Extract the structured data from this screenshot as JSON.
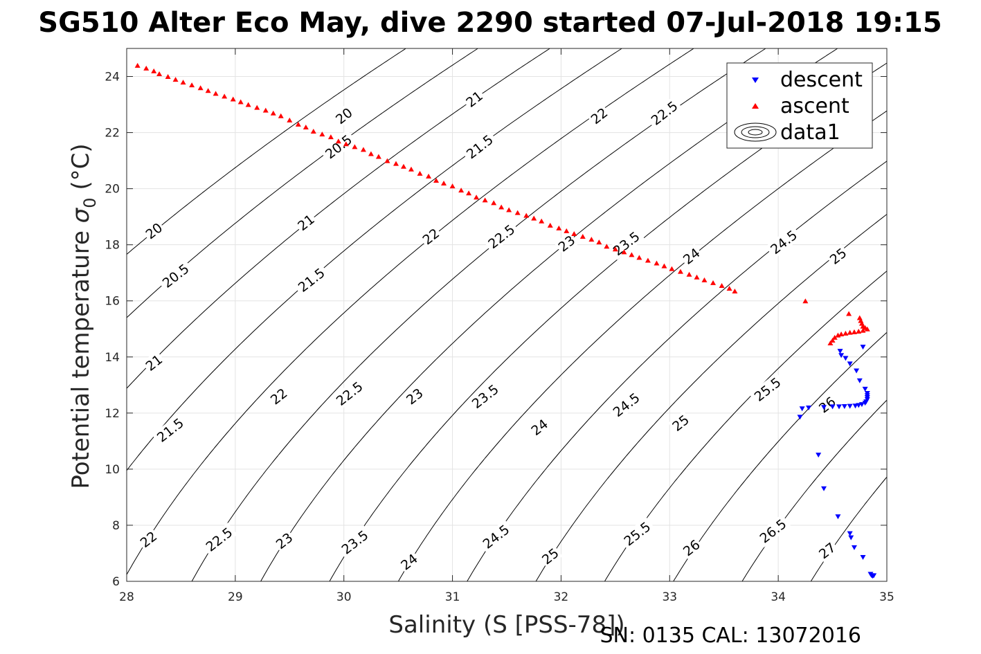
{
  "chart_data": {
    "type": "scatter",
    "title": "SG510 Alter Eco May, dive 2290 started 07-Jul-2018 19:15",
    "xlabel": "Salinity (S [PSS-78])",
    "ylabel_prefix": "Potential temperature ",
    "ylabel_symbol": "σ",
    "ylabel_subscript": "0",
    "ylabel_suffix": " (°C)",
    "xlim": [
      28,
      35
    ],
    "ylim": [
      6,
      25
    ],
    "xticks": [
      28,
      29,
      30,
      31,
      32,
      33,
      34,
      35
    ],
    "yticks": [
      6,
      8,
      10,
      12,
      14,
      16,
      18,
      20,
      22,
      24
    ],
    "grid": true,
    "legend_position": "top-right",
    "legend": [
      {
        "label": "descent",
        "marker": "triangle-down",
        "color": "#0000ff"
      },
      {
        "label": "ascent",
        "marker": "triangle-up",
        "color": "#ff0000"
      },
      {
        "label": "data1",
        "marker": "contour",
        "color": "#000000"
      }
    ],
    "footer": "SN: 0135  CAL: 13072016",
    "contours": {
      "levels": [
        20,
        20.5,
        21,
        21.5,
        22,
        22.5,
        23,
        23.5,
        24,
        24.5,
        25,
        25.5,
        26,
        26.5,
        27
      ],
      "line_color": "#000000",
      "labels": [
        {
          "text": "20",
          "x": 30.0,
          "y": 22.6
        },
        {
          "text": "21",
          "x": 31.2,
          "y": 23.2
        },
        {
          "text": "22",
          "x": 32.35,
          "y": 22.6
        },
        {
          "text": "22.5",
          "x": 32.95,
          "y": 22.7
        },
        {
          "text": "20.5",
          "x": 29.95,
          "y": 21.5
        },
        {
          "text": "21.5",
          "x": 31.25,
          "y": 21.5
        },
        {
          "text": "20",
          "x": 28.25,
          "y": 18.5
        },
        {
          "text": "21",
          "x": 29.65,
          "y": 18.8
        },
        {
          "text": "22",
          "x": 30.8,
          "y": 18.3
        },
        {
          "text": "22.5",
          "x": 31.45,
          "y": 18.3
        },
        {
          "text": "23",
          "x": 32.05,
          "y": 18.05
        },
        {
          "text": "23.5",
          "x": 32.6,
          "y": 18.05
        },
        {
          "text": "24",
          "x": 33.2,
          "y": 17.6
        },
        {
          "text": "24.5",
          "x": 34.05,
          "y": 18.1
        },
        {
          "text": "25",
          "x": 34.55,
          "y": 17.6
        },
        {
          "text": "20.5",
          "x": 28.45,
          "y": 16.9
        },
        {
          "text": "21.5",
          "x": 29.7,
          "y": 16.75
        },
        {
          "text": "21",
          "x": 28.25,
          "y": 13.8
        },
        {
          "text": "22",
          "x": 29.4,
          "y": 12.6
        },
        {
          "text": "22.5",
          "x": 30.05,
          "y": 12.7
        },
        {
          "text": "23",
          "x": 30.65,
          "y": 12.6
        },
        {
          "text": "23.5",
          "x": 31.3,
          "y": 12.6
        },
        {
          "text": "24",
          "x": 31.8,
          "y": 11.5
        },
        {
          "text": "24.5",
          "x": 32.6,
          "y": 12.3
        },
        {
          "text": "25",
          "x": 33.1,
          "y": 11.65
        },
        {
          "text": "25.5",
          "x": 33.9,
          "y": 12.85
        },
        {
          "text": "26",
          "x": 34.45,
          "y": 12.3
        },
        {
          "text": "21.5",
          "x": 28.4,
          "y": 11.4
        },
        {
          "text": "22",
          "x": 28.2,
          "y": 7.5
        },
        {
          "text": "22.5",
          "x": 28.85,
          "y": 7.5
        },
        {
          "text": "23",
          "x": 29.45,
          "y": 7.45
        },
        {
          "text": "23.5",
          "x": 30.1,
          "y": 7.4
        },
        {
          "text": "24",
          "x": 30.6,
          "y": 6.7
        },
        {
          "text": "24.5",
          "x": 31.4,
          "y": 7.6
        },
        {
          "text": "25",
          "x": 31.9,
          "y": 6.9
        },
        {
          "text": "25.5",
          "x": 32.7,
          "y": 7.7
        },
        {
          "text": "26",
          "x": 33.2,
          "y": 7.2
        },
        {
          "text": "26.5",
          "x": 33.95,
          "y": 7.8
        },
        {
          "text": "27",
          "x": 34.45,
          "y": 7.1
        }
      ]
    },
    "series": [
      {
        "name": "descent",
        "marker": "triangle-down",
        "color": "#0000ff",
        "points": [
          [
            34.2,
            11.85
          ],
          [
            34.22,
            12.15
          ],
          [
            34.28,
            12.18
          ],
          [
            34.42,
            12.2
          ],
          [
            34.5,
            12.22
          ],
          [
            34.56,
            12.22
          ],
          [
            34.61,
            12.23
          ],
          [
            34.66,
            12.24
          ],
          [
            34.71,
            12.25
          ],
          [
            34.74,
            12.27
          ],
          [
            34.77,
            12.3
          ],
          [
            34.8,
            12.35
          ],
          [
            34.81,
            12.4
          ],
          [
            34.82,
            12.48
          ],
          [
            34.82,
            12.55
          ],
          [
            34.82,
            12.62
          ],
          [
            34.82,
            12.7
          ],
          [
            34.8,
            12.85
          ],
          [
            34.75,
            13.15
          ],
          [
            34.72,
            13.5
          ],
          [
            34.66,
            13.75
          ],
          [
            34.62,
            13.95
          ],
          [
            34.57,
            14.2
          ],
          [
            34.58,
            14.05
          ],
          [
            34.78,
            14.35
          ],
          [
            34.37,
            10.5
          ],
          [
            34.42,
            9.3
          ],
          [
            34.55,
            8.3
          ],
          [
            34.66,
            7.7
          ],
          [
            34.67,
            7.55
          ],
          [
            34.7,
            7.2
          ],
          [
            34.78,
            6.85
          ],
          [
            34.85,
            6.25
          ],
          [
            34.86,
            6.2
          ],
          [
            34.87,
            6.18
          ],
          [
            34.88,
            6.2
          ]
        ]
      },
      {
        "name": "ascent",
        "marker": "triangle-up",
        "color": "#ff0000",
        "points": [
          [
            28.1,
            24.4
          ],
          [
            28.18,
            24.3
          ],
          [
            28.25,
            24.2
          ],
          [
            28.3,
            24.1
          ],
          [
            28.38,
            24.0
          ],
          [
            28.45,
            23.9
          ],
          [
            28.52,
            23.8
          ],
          [
            28.6,
            23.7
          ],
          [
            28.68,
            23.6
          ],
          [
            28.75,
            23.5
          ],
          [
            28.82,
            23.4
          ],
          [
            28.9,
            23.3
          ],
          [
            28.98,
            23.2
          ],
          [
            29.05,
            23.1
          ],
          [
            29.12,
            23.0
          ],
          [
            29.2,
            22.9
          ],
          [
            29.28,
            22.8
          ],
          [
            29.35,
            22.7
          ],
          [
            29.42,
            22.6
          ],
          [
            29.5,
            22.45
          ],
          [
            29.58,
            22.3
          ],
          [
            29.65,
            22.2
          ],
          [
            29.72,
            22.05
          ],
          [
            29.8,
            21.95
          ],
          [
            29.88,
            21.85
          ],
          [
            29.95,
            21.7
          ],
          [
            30.02,
            21.6
          ],
          [
            30.1,
            21.5
          ],
          [
            30.18,
            21.4
          ],
          [
            30.25,
            21.25
          ],
          [
            30.32,
            21.15
          ],
          [
            30.4,
            21.0
          ],
          [
            30.48,
            20.9
          ],
          [
            30.55,
            20.8
          ],
          [
            30.62,
            20.7
          ],
          [
            30.7,
            20.55
          ],
          [
            30.78,
            20.45
          ],
          [
            30.85,
            20.3
          ],
          [
            30.92,
            20.2
          ],
          [
            31.0,
            20.1
          ],
          [
            31.08,
            19.95
          ],
          [
            31.15,
            19.85
          ],
          [
            31.22,
            19.7
          ],
          [
            31.3,
            19.6
          ],
          [
            31.38,
            19.5
          ],
          [
            31.45,
            19.35
          ],
          [
            31.52,
            19.25
          ],
          [
            31.6,
            19.15
          ],
          [
            31.68,
            19.05
          ],
          [
            31.75,
            18.95
          ],
          [
            31.82,
            18.85
          ],
          [
            31.9,
            18.7
          ],
          [
            31.98,
            18.6
          ],
          [
            32.05,
            18.5
          ],
          [
            32.12,
            18.4
          ],
          [
            32.2,
            18.3
          ],
          [
            32.28,
            18.2
          ],
          [
            32.35,
            18.1
          ],
          [
            32.42,
            17.95
          ],
          [
            32.5,
            17.85
          ],
          [
            32.58,
            17.75
          ],
          [
            32.65,
            17.65
          ],
          [
            32.72,
            17.55
          ],
          [
            32.8,
            17.45
          ],
          [
            32.88,
            17.35
          ],
          [
            32.95,
            17.25
          ],
          [
            33.02,
            17.15
          ],
          [
            33.1,
            17.05
          ],
          [
            33.18,
            16.95
          ],
          [
            33.25,
            16.85
          ],
          [
            33.32,
            16.75
          ],
          [
            33.4,
            16.65
          ],
          [
            33.48,
            16.55
          ],
          [
            33.55,
            16.45
          ],
          [
            33.6,
            16.35
          ],
          [
            34.25,
            16.0
          ],
          [
            34.65,
            15.55
          ],
          [
            34.75,
            15.4
          ],
          [
            34.76,
            15.3
          ],
          [
            34.77,
            15.2
          ],
          [
            34.78,
            15.1
          ],
          [
            34.8,
            15.05
          ],
          [
            34.82,
            15.0
          ],
          [
            34.78,
            14.95
          ],
          [
            34.74,
            14.92
          ],
          [
            34.7,
            14.9
          ],
          [
            34.66,
            14.88
          ],
          [
            34.62,
            14.85
          ],
          [
            34.58,
            14.82
          ],
          [
            34.55,
            14.78
          ],
          [
            34.52,
            14.7
          ],
          [
            34.5,
            14.6
          ],
          [
            34.48,
            14.5
          ]
        ]
      }
    ]
  }
}
